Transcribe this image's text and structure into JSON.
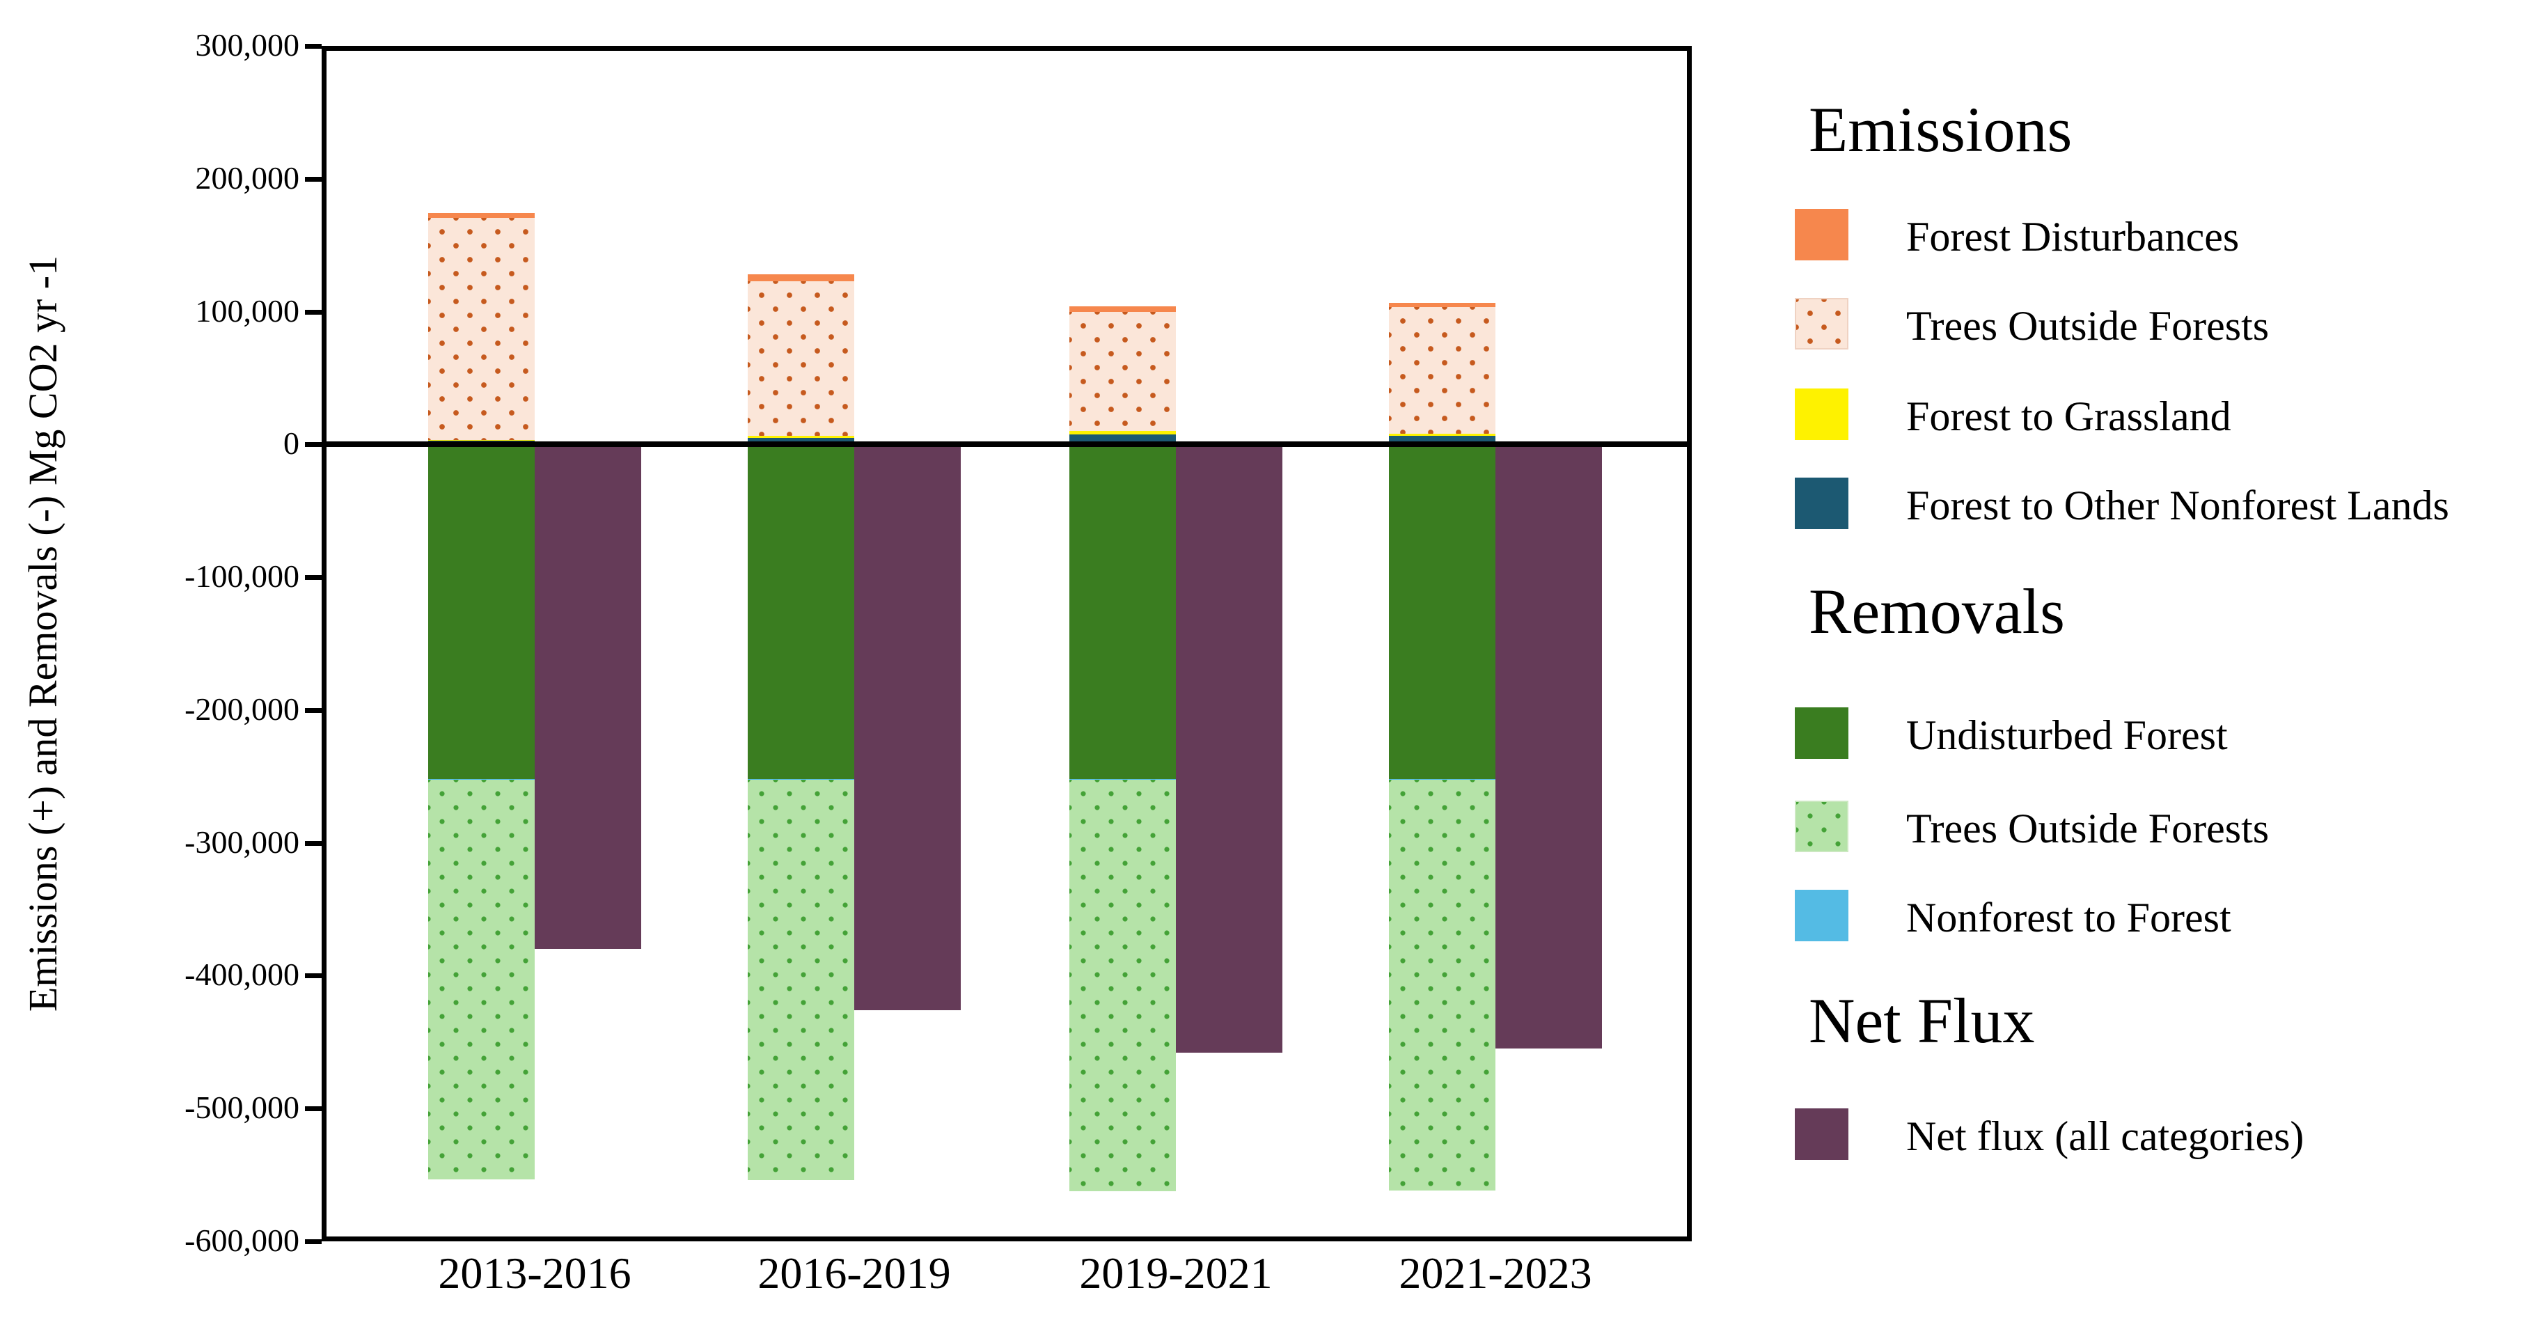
{
  "y_axis": {
    "title": "Emissions (+) and Removals (-) Mg CO2 yr -1",
    "tick_labels": [
      "300,000",
      "200,000",
      "100,000",
      "0",
      "-100,000",
      "-200,000",
      "-300,000",
      "-400,000",
      "-500,000",
      "-600,000"
    ],
    "tick_values": [
      300000,
      200000,
      100000,
      0,
      -100000,
      -200000,
      -300000,
      -400000,
      -500000,
      -600000
    ]
  },
  "x_axis": {
    "categories": [
      "2013-2016",
      "2016-2019",
      "2019-2021",
      "2021-2023"
    ]
  },
  "legend": {
    "sections": [
      {
        "title": "Emissions",
        "items": [
          {
            "label": "Forest Disturbances",
            "style": "solid",
            "color": "#F6874D"
          },
          {
            "label": "Trees Outside Forests",
            "style": "dotted-orange",
            "bg": "#FBE6D9",
            "dot": "#C65A1E"
          },
          {
            "label": "Forest to Grassland",
            "style": "solid",
            "color": "#FEF200"
          },
          {
            "label": "Forest to Other Nonforest Lands",
            "style": "solid",
            "color": "#1C5972"
          }
        ]
      },
      {
        "title": "Removals",
        "items": [
          {
            "label": "Undisturbed Forest",
            "style": "solid",
            "color": "#3A7D20"
          },
          {
            "label": "Trees Outside Forests",
            "style": "dotted-green",
            "bg": "#B5E3A8",
            "dot": "#44A237"
          },
          {
            "label": "Nonforest to Forest",
            "style": "solid",
            "color": "#54BBE4"
          }
        ]
      },
      {
        "title": "Net Flux",
        "items": [
          {
            "label": "Net flux (all categories)",
            "style": "solid",
            "color": "#653B58"
          }
        ]
      }
    ]
  },
  "chart_data": {
    "type": "bar",
    "variant": "diverging-stacked-with-net-flux-bar",
    "title": "",
    "xlabel": "",
    "ylabel": "Emissions (+) and Removals (-) Mg CO2 yr -1",
    "ylim": [
      -600000,
      300000
    ],
    "ytick_interval": 100000,
    "grid": false,
    "legend_position": "right",
    "categories": [
      "2013-2016",
      "2016-2019",
      "2019-2021",
      "2021-2023"
    ],
    "series": [
      {
        "name": "Forest Disturbances",
        "group": "emissions",
        "style": "solid",
        "color": "#F6874D",
        "values": [
          4000,
          5000,
          4000,
          3000
        ]
      },
      {
        "name": "Trees Outside Forests (emissions)",
        "group": "emissions",
        "style": "dotted-orange",
        "bg": "#FBE6D9",
        "dot": "#C65A1E",
        "values": [
          167000,
          116400,
          90000,
          95400
        ]
      },
      {
        "name": "Forest to Grassland",
        "group": "emissions",
        "style": "solid",
        "color": "#FEF200",
        "values": [
          600,
          1800,
          2600,
          1700
        ]
      },
      {
        "name": "Forest to Other Nonforest Lands",
        "group": "emissions",
        "style": "solid",
        "color": "#1C5972",
        "values": [
          2700,
          4700,
          7400,
          6300
        ]
      },
      {
        "name": "Undisturbed Forest",
        "group": "removals",
        "style": "solid",
        "color": "#3A7D20",
        "values": [
          -252000,
          -252000,
          -252000,
          -252000
        ]
      },
      {
        "name": "Nonforest to Forest",
        "group": "removals",
        "style": "solid",
        "color": "#54BBE4",
        "values": [
          -700,
          -700,
          -700,
          -700
        ]
      },
      {
        "name": "Trees Outside Forests (removals)",
        "group": "removals",
        "style": "dotted-green",
        "bg": "#B5E3A8",
        "dot": "#44A237",
        "values": [
          -300800,
          -301000,
          -309500,
          -309000
        ]
      },
      {
        "name": "Net flux (all categories)",
        "group": "net",
        "style": "solid",
        "color": "#653B58",
        "values": [
          -380000,
          -426000,
          -458000,
          -455000
        ]
      }
    ],
    "stack_order_up": [
      "Forest to Other Nonforest Lands",
      "Forest to Grassland",
      "Trees Outside Forests (emissions)",
      "Forest Disturbances"
    ],
    "stack_order_down": [
      "Undisturbed Forest",
      "Nonforest to Forest",
      "Trees Outside Forests (removals)"
    ]
  }
}
